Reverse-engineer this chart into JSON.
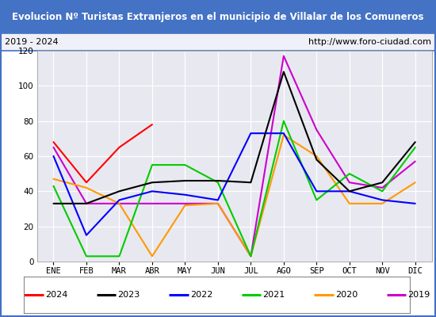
{
  "title": "Evolucion Nº Turistas Extranjeros en el municipio de Villalar de los Comuneros",
  "subtitle_left": "2019 - 2024",
  "subtitle_right": "http://www.foro-ciudad.com",
  "months": [
    "ENE",
    "FEB",
    "MAR",
    "ABR",
    "MAY",
    "JUN",
    "JUL",
    "AGO",
    "SEP",
    "OCT",
    "NOV",
    "DIC"
  ],
  "series": {
    "2024": [
      68,
      45,
      65,
      78,
      null,
      null,
      null,
      null,
      null,
      null,
      null,
      null
    ],
    "2023": [
      33,
      33,
      40,
      45,
      46,
      46,
      45,
      108,
      58,
      40,
      45,
      68
    ],
    "2022": [
      60,
      15,
      35,
      40,
      38,
      35,
      73,
      73,
      40,
      40,
      35,
      33
    ],
    "2021": [
      43,
      3,
      3,
      55,
      55,
      45,
      3,
      80,
      35,
      50,
      40,
      65
    ],
    "2020": [
      47,
      42,
      33,
      3,
      32,
      33,
      3,
      72,
      60,
      33,
      33,
      45
    ],
    "2019": [
      65,
      33,
      33,
      33,
      33,
      33,
      3,
      117,
      75,
      45,
      42,
      57
    ]
  },
  "colors": {
    "2024": "#ff0000",
    "2023": "#000000",
    "2022": "#0000ff",
    "2021": "#00cc00",
    "2020": "#ff9900",
    "2019": "#cc00cc"
  },
  "ylim": [
    0,
    120
  ],
  "yticks": [
    0,
    20,
    40,
    60,
    80,
    100,
    120
  ],
  "title_bg": "#4472c4",
  "title_fg": "#ffffff",
  "plot_bg": "#e8e8f0",
  "grid_color": "#ffffff",
  "sub_bg": "#f0f0f8",
  "border_color": "#4472c4",
  "legend_years": [
    "2024",
    "2023",
    "2022",
    "2021",
    "2020",
    "2019"
  ],
  "title_fontsize": 8.5,
  "tick_fontsize": 7.5,
  "legend_fontsize": 8
}
